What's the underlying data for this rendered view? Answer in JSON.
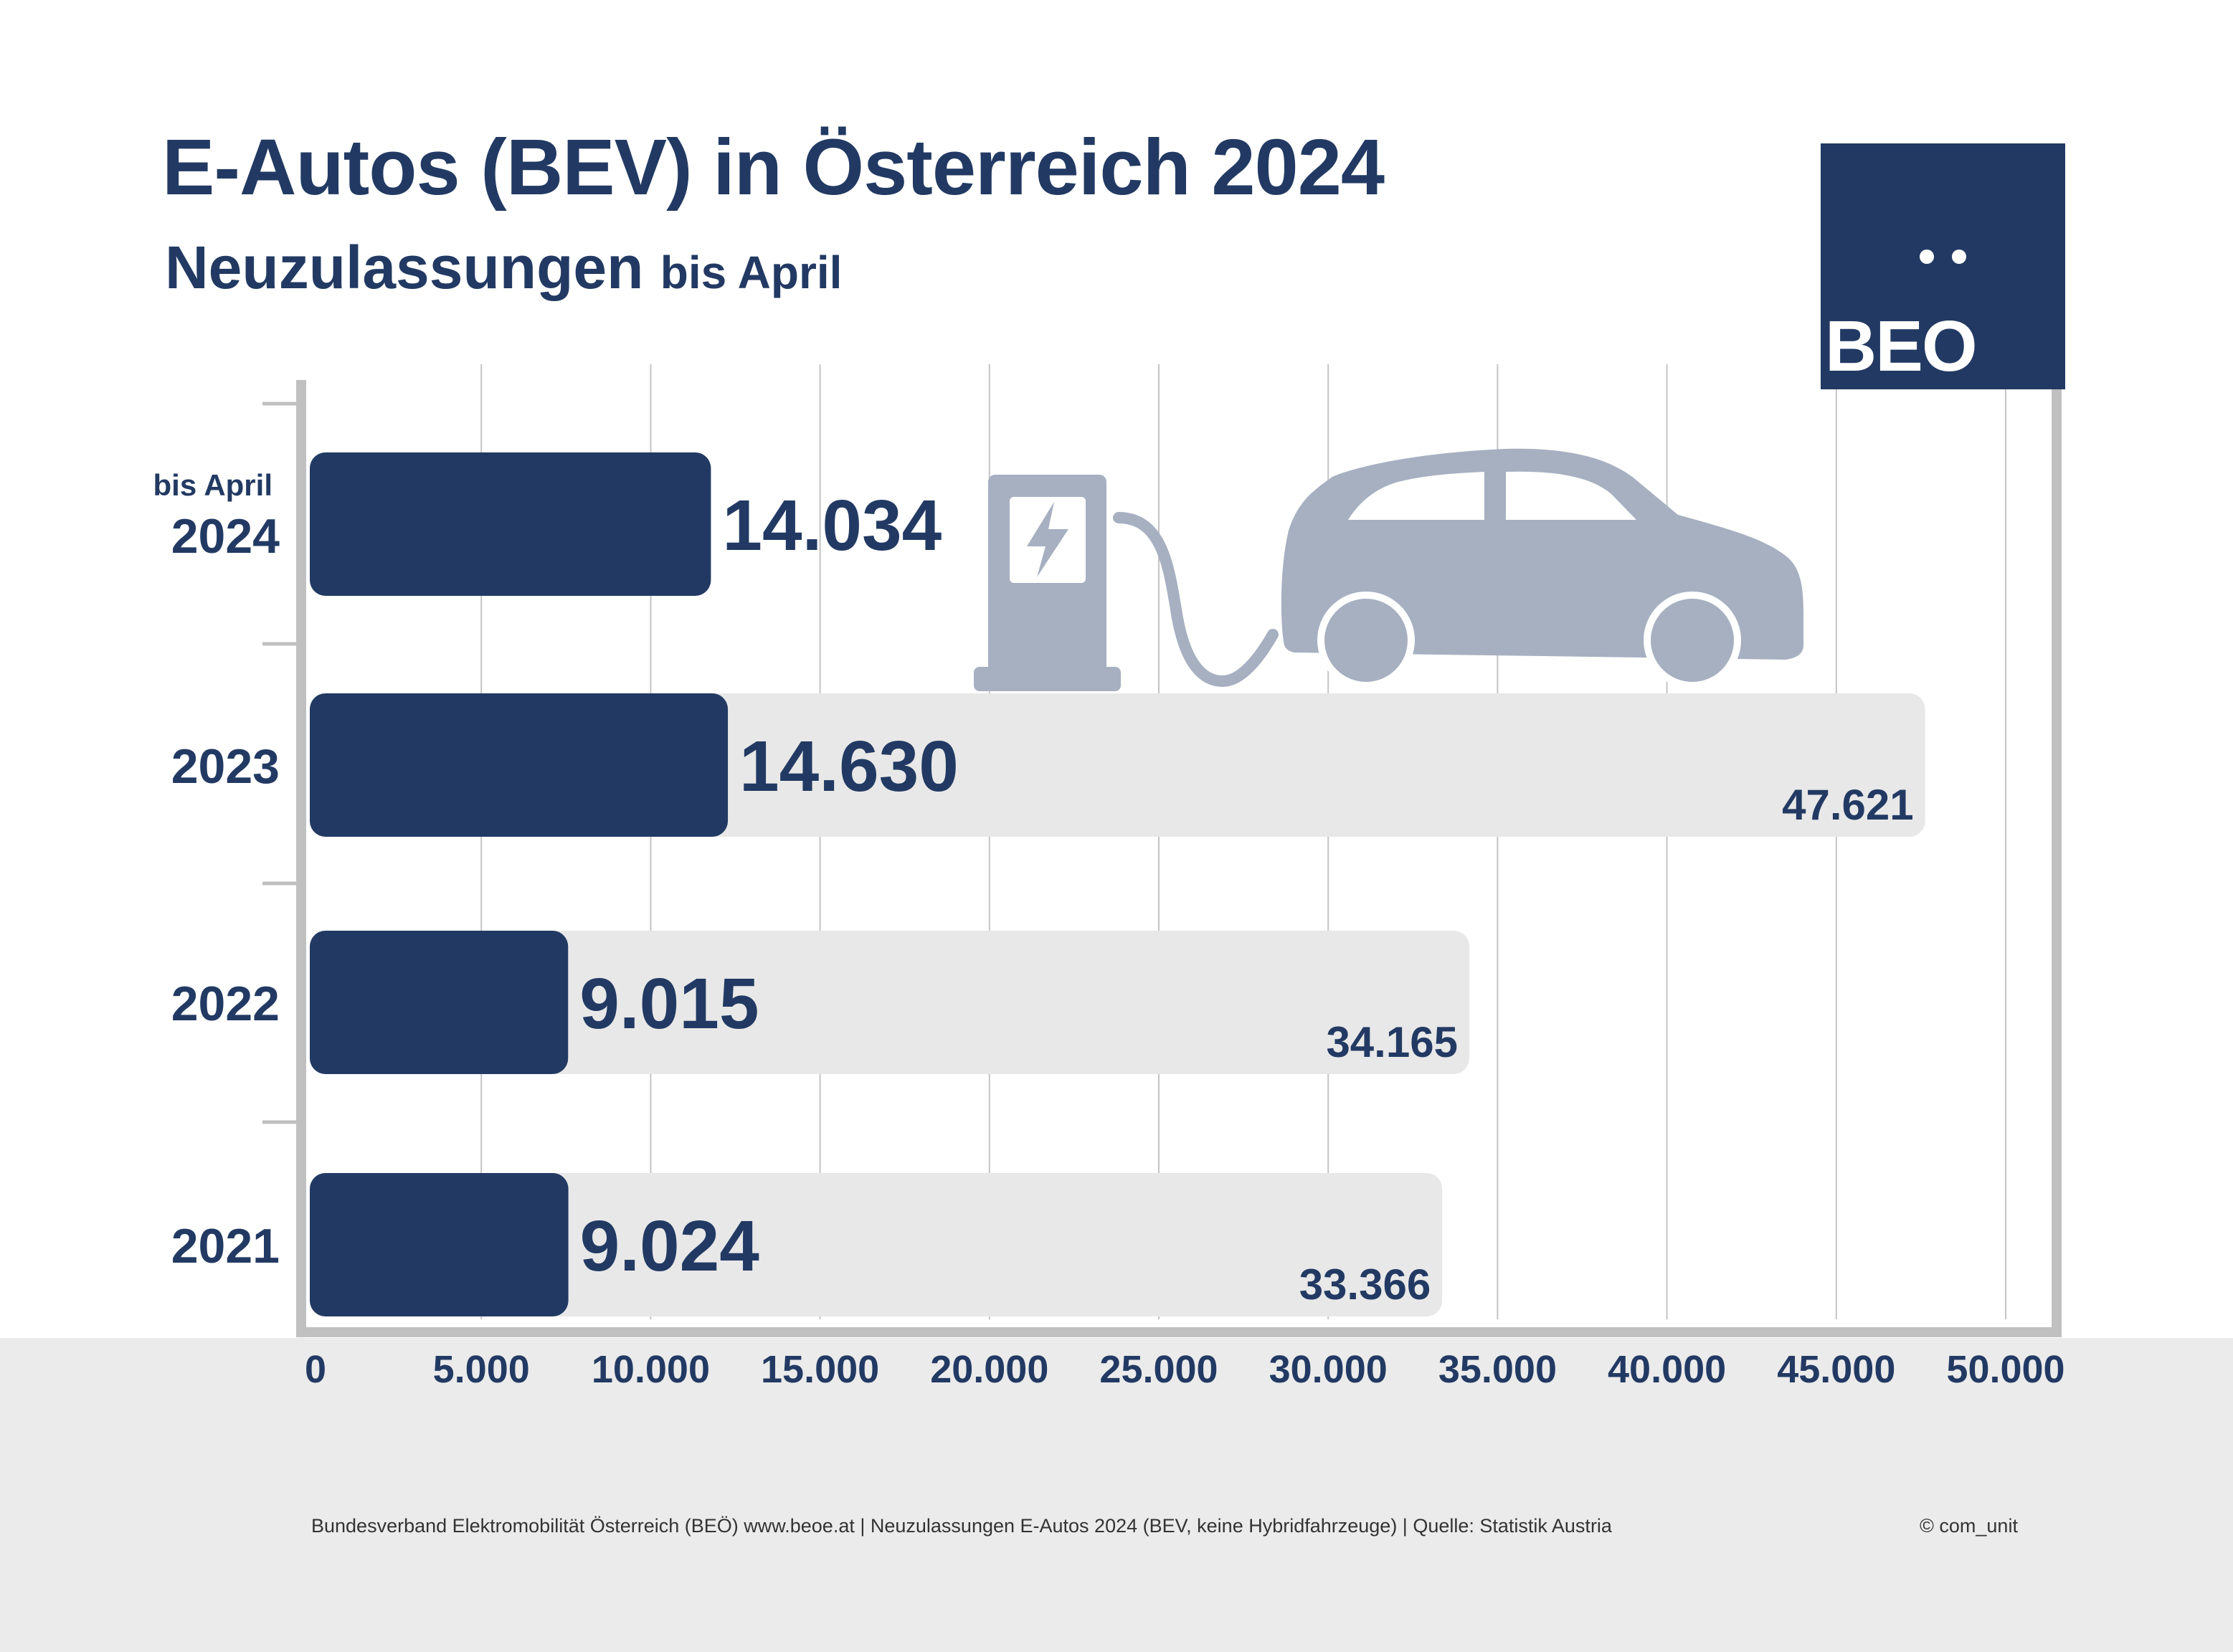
{
  "title": "E-Autos (BEV) in Österreich 2024",
  "subtitle": {
    "main": "Neuzulassungen",
    "suffix": "bis April"
  },
  "logo": {
    "text": "BEO"
  },
  "footer": {
    "source": "Bundesverband Elektromobilität Österreich (BEÖ) www.beoe.at | Neuzulassungen E-Autos 2024 (BEV, keine Hybridfahrzeuge) | Quelle: Statistik Austria",
    "credit": "© com_unit"
  },
  "colors": {
    "primary": "#223a63",
    "total_bar": "#e8e8e8",
    "illustration": "#a6b0c1",
    "grid": "#c4c4c4",
    "axis": "#c0c0c0",
    "footer_band": "#ebebeb"
  },
  "icons": [
    "charging-station-icon",
    "electric-car-icon",
    "lightning-bolt-icon"
  ],
  "chart_data": {
    "type": "bar",
    "orientation": "horizontal",
    "categories": [
      "2024",
      "2023",
      "2022",
      "2021"
    ],
    "category_notes": {
      "2024": "bis April"
    },
    "series": [
      {
        "values": [
          14034,
          14630,
          9015,
          9024
        ]
      },
      {
        "values": [
          null,
          47621,
          34165,
          33366
        ]
      }
    ],
    "data_labels": {
      "jan_apr": [
        "14.034",
        "14.630",
        "9.015",
        "9.024"
      ],
      "full_year": [
        "",
        "47.621",
        "34.165",
        "33.366"
      ]
    },
    "xlim": [
      0,
      50000
    ],
    "xticks": [
      0,
      5000,
      10000,
      15000,
      20000,
      25000,
      30000,
      35000,
      40000,
      45000,
      50000
    ],
    "xtick_labels": [
      "0",
      "5.000",
      "10.000",
      "15.000",
      "20.000",
      "25.000",
      "30.000",
      "35.000",
      "40.000",
      "45.000",
      "50.000"
    ],
    "grid": true,
    "legend": "none"
  }
}
